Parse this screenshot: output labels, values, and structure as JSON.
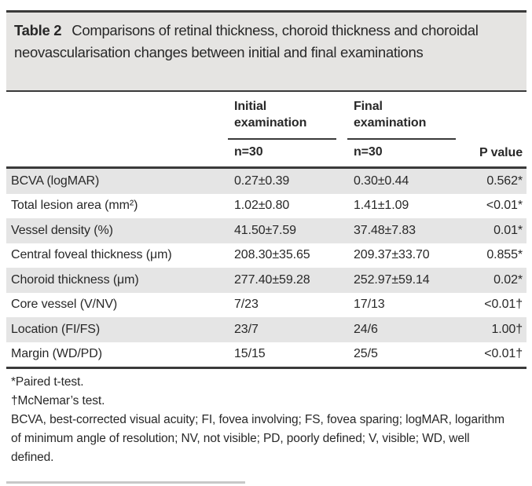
{
  "title": {
    "label": "Table 2",
    "text": "Comparisons of retinal thickness, choroid thickness and choroidal neovascularisation changes between initial and final examinations"
  },
  "columns": {
    "initial": {
      "name": "Initial examination",
      "n": "n=30"
    },
    "final": {
      "name": "Final examination",
      "n": "n=30"
    },
    "p": "P value"
  },
  "rows": [
    {
      "label": "BCVA (logMAR)",
      "initial": "0.27±0.39",
      "final": "0.30±0.44",
      "p": "0.562*"
    },
    {
      "label": "Total lesion area (mm²)",
      "initial": "1.02±0.80",
      "final": "1.41±1.09",
      "p": "<0.01*"
    },
    {
      "label": "Vessel density (%)",
      "initial": "41.50±7.59",
      "final": "37.48±7.83",
      "p": "0.01*"
    },
    {
      "label": "Central foveal thickness (μm)",
      "initial": "208.30±35.65",
      "final": "209.37±33.70",
      "p": "0.855*"
    },
    {
      "label": "Choroid thickness (μm)",
      "initial": "277.40±59.28",
      "final": "252.97±59.14",
      "p": "0.02*"
    },
    {
      "label": "Core vessel (V/NV)",
      "initial": "7/23",
      "final": "17/13",
      "p": "<0.01†"
    },
    {
      "label": "Location (FI/FS)",
      "initial": "23/7",
      "final": "24/6",
      "p": "1.00†"
    },
    {
      "label": "Margin (WD/PD)",
      "initial": "15/15",
      "final": "25/5",
      "p": "<0.01†"
    }
  ],
  "footnotes": {
    "paired": "*Paired t-test.",
    "mcnemar": "†McNemar’s test.",
    "abbreviations": "BCVA, best-corrected visual acuity; FI, fovea involving; FS, fovea sparing; logMAR, logarithm of minimum angle of resolution; NV, not visible; PD, poorly defined; V, visible; WD, well defined."
  },
  "colors": {
    "title_box": "#e5e4e2",
    "row_shade": "#e5e5e5",
    "rule": "#3a3a3a",
    "text": "#282828"
  }
}
